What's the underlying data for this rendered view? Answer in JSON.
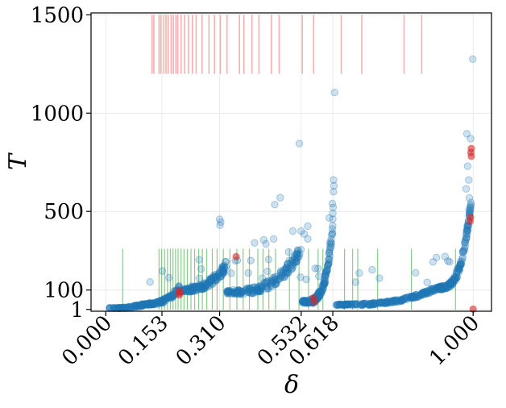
{
  "chart_data": {
    "type": "scatter",
    "title": "",
    "xlabel": "δ",
    "ylabel": "T",
    "xlim": [
      -0.04,
      1.05
    ],
    "ylim": [
      -8,
      1510
    ],
    "grid": true,
    "x_ticks": [
      0.0,
      0.153,
      0.31,
      0.532,
      0.618,
      1.0
    ],
    "x_tick_labels": [
      "0.000",
      "0.153",
      "0.310",
      "0.532",
      "0.618",
      "1.000"
    ],
    "y_ticks": [
      1,
      100,
      500,
      1000,
      1500
    ],
    "y_tick_labels": [
      "1",
      "100",
      "500",
      "1000",
      "1500"
    ],
    "colors": {
      "points": "#1f77b4",
      "highlight": "#d62728",
      "red_rug": "#f4a6a6",
      "green_rug": "#4caf50",
      "grid": "#e6e6e6"
    },
    "red_rug": {
      "y_range": [
        1200,
        1500
      ],
      "x": [
        0.126,
        0.131,
        0.145,
        0.15,
        0.158,
        0.164,
        0.17,
        0.178,
        0.184,
        0.191,
        0.196,
        0.205,
        0.215,
        0.225,
        0.236,
        0.246,
        0.262,
        0.281,
        0.296,
        0.312,
        0.33,
        0.364,
        0.376,
        0.398,
        0.417,
        0.451,
        0.472,
        0.535,
        0.566,
        0.641,
        0.697,
        0.812,
        0.86
      ]
    },
    "green_rug": {
      "y_range": [
        0,
        310
      ],
      "x": [
        0.046,
        0.145,
        0.152,
        0.16,
        0.168,
        0.176,
        0.183,
        0.19,
        0.197,
        0.205,
        0.213,
        0.222,
        0.232,
        0.242,
        0.253,
        0.263,
        0.275,
        0.29,
        0.303,
        0.32,
        0.338,
        0.357,
        0.374,
        0.391,
        0.414,
        0.428,
        0.444,
        0.462,
        0.5,
        0.526,
        0.552,
        0.578,
        0.591,
        0.65,
        0.672,
        0.686,
        0.74,
        0.832,
        0.952
      ]
    },
    "highlight_points": [
      {
        "x": 0.2,
        "y": 75
      },
      {
        "x": 0.2,
        "y": 95
      },
      {
        "x": 0.202,
        "y": 85
      },
      {
        "x": 0.355,
        "y": 270
      },
      {
        "x": 0.565,
        "y": 60
      },
      {
        "x": 0.568,
        "y": 40
      },
      {
        "x": 0.992,
        "y": 450
      },
      {
        "x": 0.993,
        "y": 470
      },
      {
        "x": 0.994,
        "y": 800
      },
      {
        "x": 0.995,
        "y": 820
      },
      {
        "x": 0.995,
        "y": 780
      },
      {
        "x": 1.0,
        "y": 3
      }
    ],
    "outlier_points": [
      {
        "x": 0.999,
        "y": 1275
      },
      {
        "x": 0.623,
        "y": 1105
      },
      {
        "x": 0.527,
        "y": 845
      },
      {
        "x": 0.983,
        "y": 895
      },
      {
        "x": 0.993,
        "y": 870
      },
      {
        "x": 0.985,
        "y": 730
      },
      {
        "x": 0.988,
        "y": 660
      },
      {
        "x": 0.981,
        "y": 615
      },
      {
        "x": 0.62,
        "y": 660
      },
      {
        "x": 0.621,
        "y": 630
      },
      {
        "x": 0.62,
        "y": 600
      },
      {
        "x": 0.617,
        "y": 540
      },
      {
        "x": 0.619,
        "y": 520
      },
      {
        "x": 0.618,
        "y": 490
      },
      {
        "x": 0.618,
        "y": 460
      },
      {
        "x": 0.475,
        "y": 570
      },
      {
        "x": 0.46,
        "y": 535
      },
      {
        "x": 0.31,
        "y": 460
      },
      {
        "x": 0.313,
        "y": 445
      },
      {
        "x": 0.311,
        "y": 430
      },
      {
        "x": 0.457,
        "y": 360
      },
      {
        "x": 0.54,
        "y": 385
      },
      {
        "x": 0.55,
        "y": 360
      },
      {
        "x": 0.55,
        "y": 425
      },
      {
        "x": 0.531,
        "y": 305
      },
      {
        "x": 0.532,
        "y": 400
      },
      {
        "x": 0.43,
        "y": 355
      },
      {
        "x": 0.436,
        "y": 335
      },
      {
        "x": 0.405,
        "y": 340
      },
      {
        "x": 0.68,
        "y": 140
      },
      {
        "x": 0.745,
        "y": 160
      },
      {
        "x": 0.57,
        "y": 210
      },
      {
        "x": 0.58,
        "y": 170
      },
      {
        "x": 0.53,
        "y": 165
      },
      {
        "x": 0.5,
        "y": 250
      },
      {
        "x": 0.44,
        "y": 195
      }
    ],
    "curve_segments": [
      {
        "x0": 0.01,
        "x1": 0.12,
        "y0": 0,
        "y1": 30,
        "p": 1.2,
        "n": 110,
        "jitter": 10,
        "spike": 0
      },
      {
        "x0": 0.12,
        "x1": 0.2,
        "y0": 30,
        "y1": 110,
        "p": 2.2,
        "n": 90,
        "jitter": 22,
        "spike": 0.05
      },
      {
        "x0": 0.205,
        "x1": 0.33,
        "y0": 100,
        "y1": 230,
        "p": 2.5,
        "n": 160,
        "jitter": 38,
        "spike": 0.05
      },
      {
        "x0": 0.33,
        "x1": 0.53,
        "y0": 90,
        "y1": 300,
        "p": 3.0,
        "n": 200,
        "jitter": 45,
        "spike": 0.05
      },
      {
        "x0": 0.535,
        "x1": 0.618,
        "y0": 40,
        "y1": 420,
        "p": 4.0,
        "n": 150,
        "jitter": 35,
        "spike": 0.05
      },
      {
        "x0": 0.625,
        "x1": 0.9,
        "y0": 25,
        "y1": 110,
        "p": 3.0,
        "n": 220,
        "jitter": 14,
        "spike": 0.02
      },
      {
        "x0": 0.9,
        "x1": 0.995,
        "y0": 110,
        "y1": 560,
        "p": 3.5,
        "n": 170,
        "jitter": 35,
        "spike": 0.04
      }
    ]
  }
}
